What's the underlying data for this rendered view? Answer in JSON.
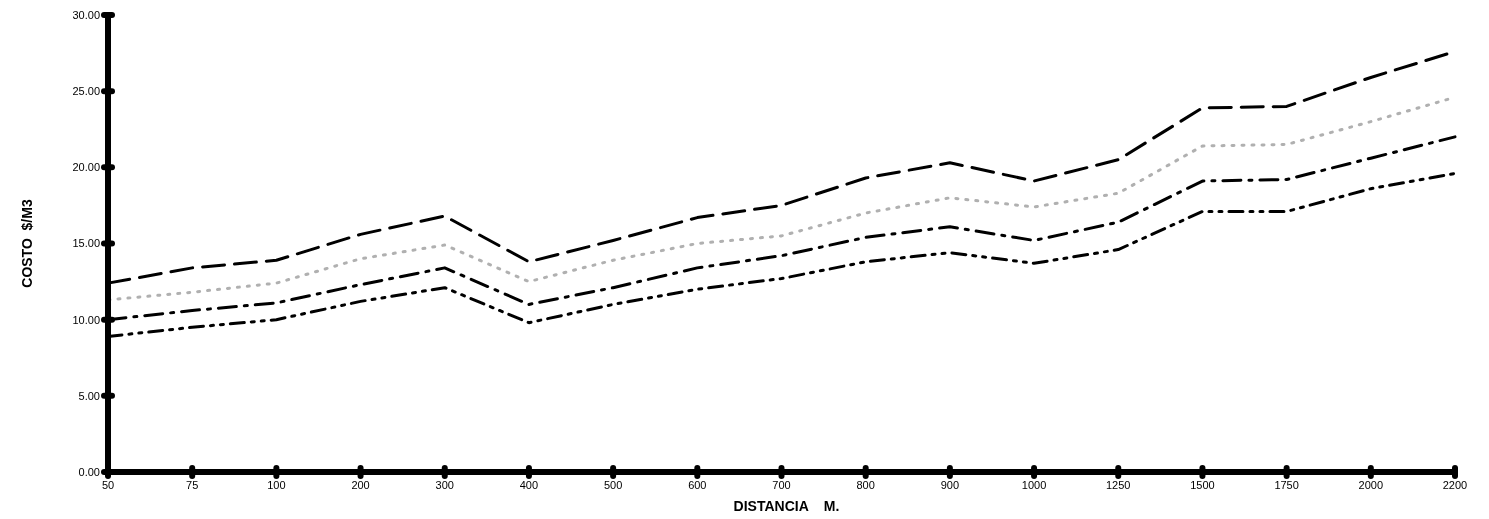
{
  "chart_data": {
    "type": "line",
    "xlabel": "DISTANCIA    M.",
    "ylabel": "COSTO  $/M3",
    "categories": [
      "50",
      "75",
      "100",
      "200",
      "300",
      "400",
      "500",
      "600",
      "700",
      "800",
      "900",
      "1000",
      "1250",
      "1500",
      "1750",
      "2000",
      "2200"
    ],
    "ylim": [
      0,
      30
    ],
    "yticks": [
      {
        "value": 0,
        "label": "0.00"
      },
      {
        "value": 5,
        "label": "5.00"
      },
      {
        "value": 10,
        "label": "10.00"
      },
      {
        "value": 15,
        "label": "15.00"
      },
      {
        "value": 20,
        "label": "20.00"
      },
      {
        "value": 25,
        "label": "25.00"
      },
      {
        "value": 30,
        "label": "30.00"
      }
    ],
    "grid": false,
    "marker": "none",
    "series": [
      {
        "color": "#000000",
        "line_style": "dashed",
        "values": [
          12.4,
          13.4,
          13.9,
          15.6,
          16.8,
          13.8,
          15.2,
          16.7,
          17.5,
          19.3,
          20.3,
          19.1,
          20.5,
          23.9,
          24.0,
          25.9,
          27.6
        ]
      },
      {
        "color": "#b0b0b0",
        "line_style": "dotted",
        "values": [
          11.3,
          11.8,
          12.4,
          14.0,
          14.9,
          12.5,
          13.9,
          15.0,
          15.5,
          17.0,
          18.0,
          17.4,
          18.3,
          21.4,
          21.5,
          23.0,
          24.6
        ]
      },
      {
        "color": "#000000",
        "line_style": "dashdot",
        "values": [
          10.0,
          10.6,
          11.1,
          12.3,
          13.4,
          11.0,
          12.1,
          13.4,
          14.2,
          15.4,
          16.1,
          15.2,
          16.4,
          19.1,
          19.2,
          20.6,
          22.0
        ]
      },
      {
        "color": "#000000",
        "line_style": "dashdotdot",
        "values": [
          8.9,
          9.5,
          10.0,
          11.2,
          12.1,
          9.8,
          11.0,
          12.0,
          12.7,
          13.8,
          14.4,
          13.7,
          14.6,
          17.1,
          17.1,
          18.6,
          19.6
        ]
      }
    ]
  }
}
